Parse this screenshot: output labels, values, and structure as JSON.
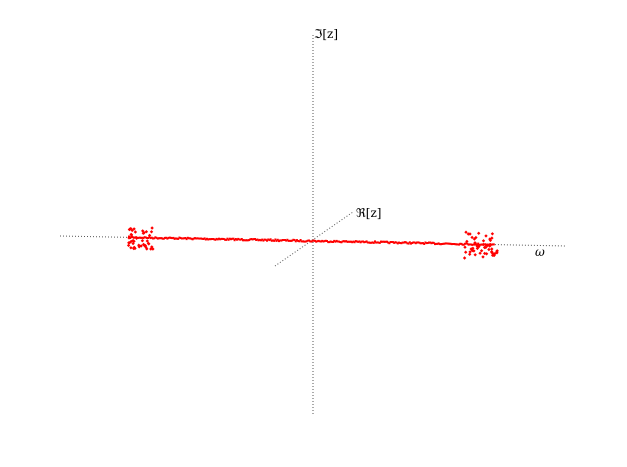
{
  "chart_data": {
    "type": "scatter",
    "projection": "3d",
    "axes": {
      "vertical_label": "ℑ[z]",
      "depth_label": "ℜ[z]",
      "horizontal_label": "ω",
      "style": "dotted",
      "grid": false
    },
    "series": [
      {
        "marker": "dot",
        "color": "#ff0000",
        "description_of_shape": "dense band of points along the ω axis with scattered clusters near both ends",
        "x_range": [
          -1,
          1
        ]
      }
    ]
  },
  "colors": {
    "axis": "#555555",
    "points": "#ff0000",
    "background": "#ffffff"
  }
}
